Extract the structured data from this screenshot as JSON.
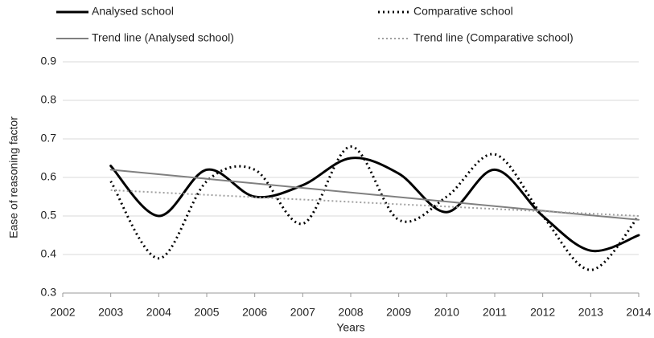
{
  "chart_data": {
    "type": "line",
    "x_label": "Years",
    "y_label": "Ease of reasoning factor",
    "x": [
      2003,
      2004,
      2005,
      2006,
      2007,
      2008,
      2009,
      2010,
      2011,
      2012,
      2013,
      2014
    ],
    "series": [
      {
        "name": "Analysed school",
        "color": "#000000",
        "style": "solid",
        "width": 3,
        "smooth": true,
        "values": [
          0.63,
          0.5,
          0.62,
          0.55,
          0.58,
          0.65,
          0.61,
          0.51,
          0.62,
          0.5,
          0.41,
          0.45
        ]
      },
      {
        "name": "Comparative school",
        "color": "#000000",
        "style": "dotted",
        "width": 3,
        "smooth": true,
        "values": [
          0.59,
          0.39,
          0.59,
          0.62,
          0.48,
          0.68,
          0.49,
          0.55,
          0.66,
          0.5,
          0.36,
          0.5
        ]
      },
      {
        "name": "Trend line (Analysed school)",
        "color": "#808080",
        "style": "solid",
        "width": 2,
        "smooth": false,
        "x": [
          2003,
          2014
        ],
        "values": [
          0.62,
          0.49
        ]
      },
      {
        "name": "Trend line (Comparative school)",
        "color": "#a0a0a0",
        "style": "dotted",
        "width": 2,
        "smooth": false,
        "x": [
          2003,
          2014
        ],
        "values": [
          0.567,
          0.5
        ]
      }
    ],
    "xlim": [
      2002,
      2014
    ],
    "xticks": [
      2002,
      2003,
      2004,
      2005,
      2006,
      2007,
      2008,
      2009,
      2010,
      2011,
      2012,
      2013,
      2014
    ],
    "ylim": [
      0.3,
      0.9
    ],
    "yticks": [
      0.3,
      0.4,
      0.5,
      0.6,
      0.7,
      0.8,
      0.9
    ],
    "grid": true
  }
}
